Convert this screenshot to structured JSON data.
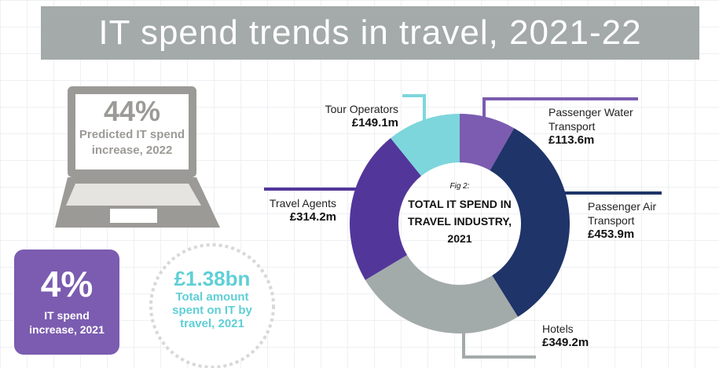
{
  "title": "IT spend trends in travel, 2021-22",
  "stats": [
    {
      "figure": "44%",
      "caption": "Predicted IT spend increase, 2022"
    },
    {
      "figure": "4%",
      "caption": "IT spend increase, 2021"
    },
    {
      "figure": "£1.38bn",
      "caption": "Total amount spent on IT by travel, 2021"
    }
  ],
  "chart_data": {
    "type": "donut",
    "figure_label": "Fig 2:",
    "title": "TOTAL IT SPEND IN TRAVEL INDUSTRY, 2021",
    "categories": [
      "Passenger Water Transport",
      "Passenger Air Transport",
      "Hotels",
      "Travel Agents",
      "Tour Operators"
    ],
    "values": [
      113.6,
      453.9,
      349.2,
      314.2,
      149.1
    ],
    "value_labels": [
      "£113.6m",
      "£453.9m",
      "£349.2m",
      "£314.2m",
      "£149.1m"
    ],
    "colors": [
      "#7b5cb0",
      "#1f3468",
      "#a3aaaa",
      "#52369a",
      "#7dd6dc"
    ]
  }
}
